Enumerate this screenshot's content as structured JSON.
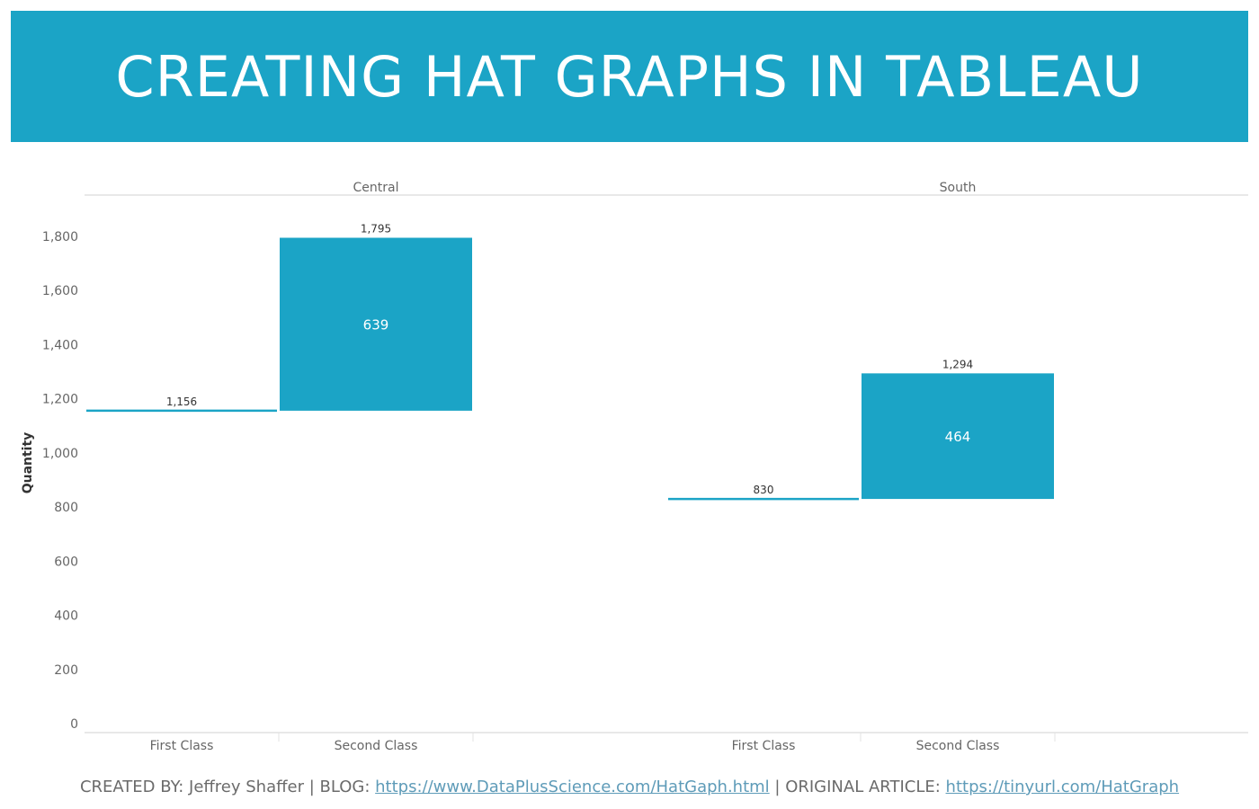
{
  "banner": {
    "title": "CREATING HAT GRAPHS IN TABLEAU"
  },
  "colors": {
    "accent": "#1ba4c6",
    "axis_text": "#666666",
    "line": "#d0d0d0",
    "link": "#5e9bb8"
  },
  "chart_data": {
    "type": "bar",
    "subtype": "hat-graph",
    "ylabel": "Quantity",
    "ylim": [
      0,
      1900
    ],
    "yticks": [
      0,
      200,
      400,
      600,
      800,
      1000,
      1200,
      1400,
      1600,
      1800
    ],
    "ytick_labels": [
      "0",
      "200",
      "400",
      "600",
      "800",
      "1,000",
      "1,200",
      "1,400",
      "1,600",
      "1,800"
    ],
    "categories": [
      "First Class",
      "Second Class"
    ],
    "panels": [
      {
        "name": "Central",
        "values": [
          1156,
          1795
        ],
        "value_labels": [
          "1,156",
          "1,795"
        ],
        "difference": 639,
        "difference_label": "639"
      },
      {
        "name": "South",
        "values": [
          830,
          1294
        ],
        "value_labels": [
          "830",
          "1,294"
        ],
        "difference": 464,
        "difference_label": "464"
      }
    ],
    "grid": false,
    "legend": "none"
  },
  "footer": {
    "created_by": "CREATED BY: Jeffrey Shaffer | BLOG: ",
    "blog_link": "https://www.DataPlusScience.com/HatGaph.html",
    "article_label": " | ORIGINAL ARTICLE: ",
    "article_link": "https://tinyurl.com/HatGraph"
  }
}
